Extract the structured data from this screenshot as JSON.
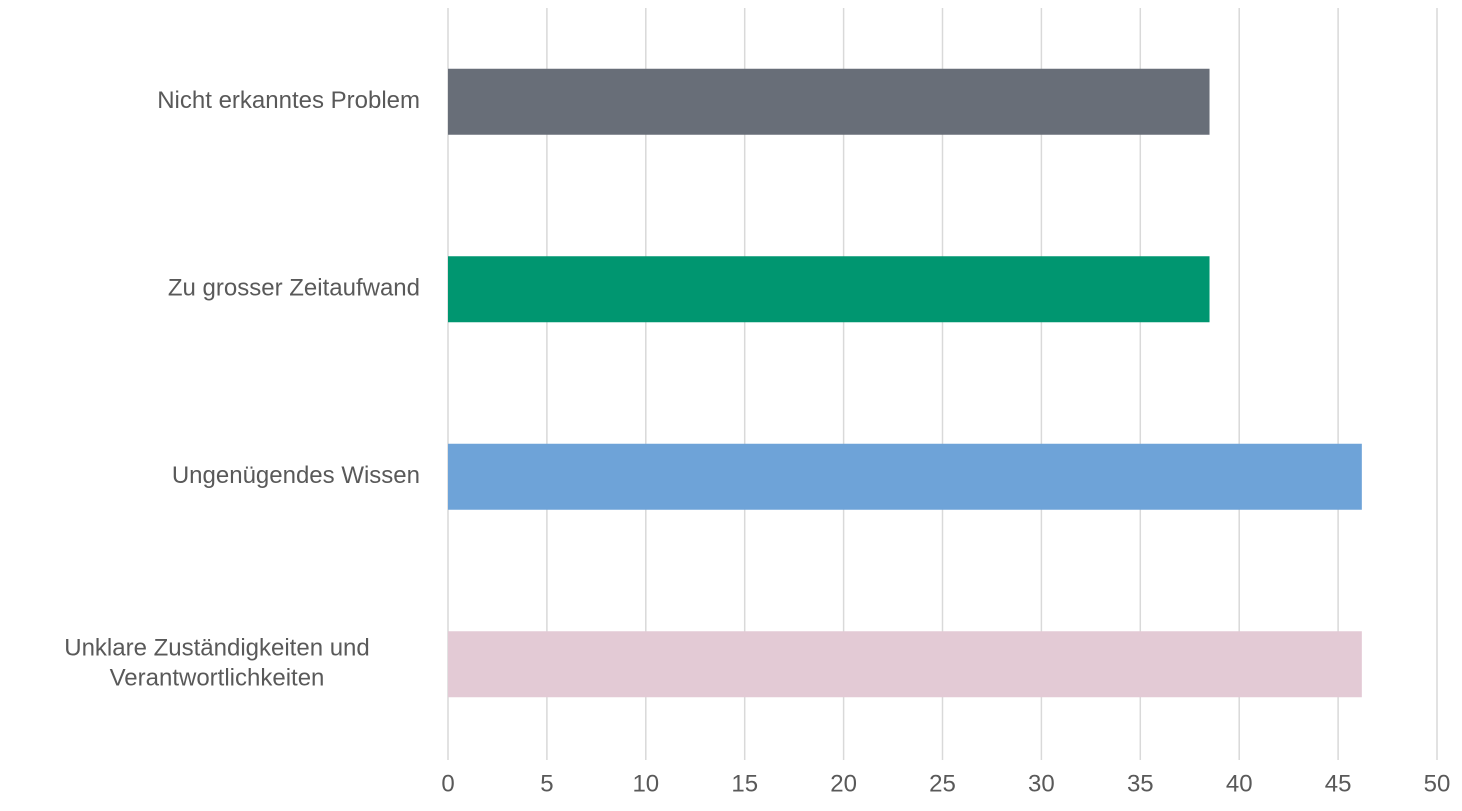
{
  "chart_data": {
    "type": "bar",
    "orientation": "horizontal",
    "categories": [
      "Nicht erkanntes Problem",
      "Zu grosser Zeitaufwand",
      "Ungenügendes Wissen",
      "Unklare Zuständigkeiten und\nVerantwortlichkeiten"
    ],
    "values": [
      38.5,
      38.5,
      46.2,
      46.2
    ],
    "colors": [
      "#686e78",
      "#009670",
      "#6ea3d8",
      "#e3cad5"
    ],
    "xlim": [
      0,
      50
    ],
    "xticks": [
      0,
      5,
      10,
      15,
      20,
      25,
      30,
      35,
      40,
      45,
      50
    ],
    "grid": true
  }
}
